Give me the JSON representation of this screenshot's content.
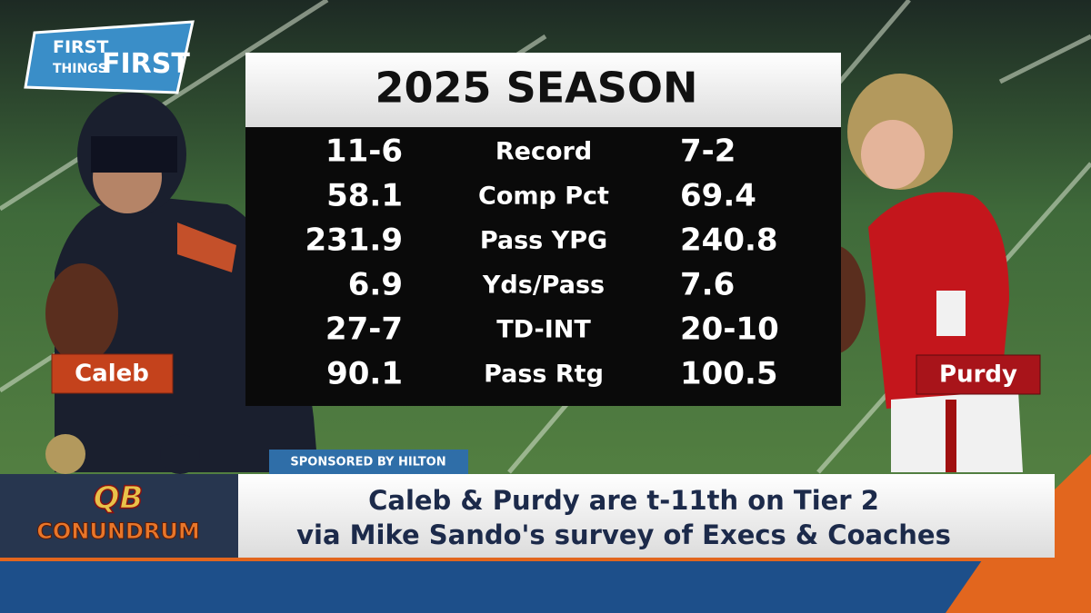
{
  "logo": {
    "line1": "FIRST",
    "line2": "THINGS",
    "line3": "FIRST"
  },
  "stats": {
    "title": "2025 SEASON",
    "rows": [
      {
        "left": "11-6",
        "label": "Record",
        "right": "7-2"
      },
      {
        "left": "58.1",
        "label": "Comp Pct",
        "right": "69.4"
      },
      {
        "left": "231.9",
        "label": "Pass YPG",
        "right": "240.8"
      },
      {
        "left": "6.9",
        "label": "Yds/Pass",
        "right": "7.6"
      },
      {
        "left": "27-7",
        "label": "TD-INT",
        "right": "20-10"
      },
      {
        "left": "90.1",
        "label": "Pass Rtg",
        "right": "100.5"
      }
    ]
  },
  "players": {
    "left": "Caleb",
    "right": "Purdy"
  },
  "lower_third": {
    "sponsor": "SPONSORED BY HILTON",
    "segment_top": "QB",
    "segment_bottom": "CONUNDRUM",
    "headline_line1": "Caleb & Purdy are t-11th on Tier 2",
    "headline_line2": "via Mike Sando's survey of Execs & Coaches"
  }
}
